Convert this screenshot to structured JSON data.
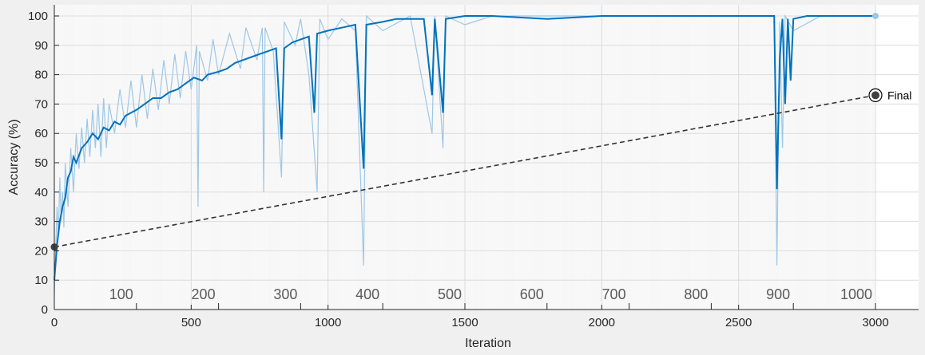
{
  "chart_data": {
    "type": "line",
    "xlabel": "Iteration",
    "ylabel": "Accuracy (%)",
    "xlim": [
      0,
      3000
    ],
    "ylim": [
      0,
      100
    ],
    "xticks": [
      0,
      500,
      1000,
      1500,
      2000,
      2500,
      3000
    ],
    "yticks": [
      0,
      10,
      20,
      30,
      40,
      50,
      60,
      70,
      80,
      90,
      100
    ],
    "epoch_ticks": [
      {
        "iteration": 300,
        "label": "100"
      },
      {
        "iteration": 600,
        "label": "200"
      },
      {
        "iteration": 900,
        "label": "300"
      },
      {
        "iteration": 1200,
        "label": "400"
      },
      {
        "iteration": 1500,
        "label": "500"
      },
      {
        "iteration": 1800,
        "label": "600"
      },
      {
        "iteration": 2100,
        "label": "700"
      },
      {
        "iteration": 2400,
        "label": "800"
      },
      {
        "iteration": 2700,
        "label": "900"
      },
      {
        "iteration": 3000,
        "label": "1000"
      }
    ],
    "grid": true,
    "series": [
      {
        "color": "#0072bd",
        "style": "smoothed",
        "points": [
          [
            0,
            10
          ],
          [
            10,
            22
          ],
          [
            20,
            30
          ],
          [
            30,
            35
          ],
          [
            40,
            38
          ],
          [
            50,
            45
          ],
          [
            60,
            47
          ],
          [
            70,
            52
          ],
          [
            80,
            50
          ],
          [
            100,
            55
          ],
          [
            120,
            57
          ],
          [
            140,
            60
          ],
          [
            160,
            58
          ],
          [
            180,
            62
          ],
          [
            200,
            61
          ],
          [
            220,
            64
          ],
          [
            240,
            63
          ],
          [
            260,
            66
          ],
          [
            280,
            67
          ],
          [
            300,
            68
          ],
          [
            330,
            70
          ],
          [
            360,
            72
          ],
          [
            390,
            72
          ],
          [
            420,
            74
          ],
          [
            450,
            75
          ],
          [
            480,
            77
          ],
          [
            510,
            79
          ],
          [
            540,
            78
          ],
          [
            560,
            80
          ],
          [
            600,
            81
          ],
          [
            630,
            82
          ],
          [
            660,
            84
          ],
          [
            690,
            85
          ],
          [
            720,
            86
          ],
          [
            750,
            87
          ],
          [
            780,
            88
          ],
          [
            810,
            89
          ],
          [
            830,
            58
          ],
          [
            840,
            89
          ],
          [
            870,
            91
          ],
          [
            900,
            92
          ],
          [
            930,
            93
          ],
          [
            950,
            67
          ],
          [
            960,
            94
          ],
          [
            1000,
            95
          ],
          [
            1050,
            96
          ],
          [
            1100,
            97
          ],
          [
            1130,
            48
          ],
          [
            1140,
            97
          ],
          [
            1200,
            98
          ],
          [
            1250,
            99
          ],
          [
            1300,
            99
          ],
          [
            1350,
            99
          ],
          [
            1380,
            73
          ],
          [
            1390,
            99
          ],
          [
            1420,
            67
          ],
          [
            1430,
            99
          ],
          [
            1500,
            100
          ],
          [
            1600,
            100
          ],
          [
            1800,
            99
          ],
          [
            2000,
            100
          ],
          [
            2200,
            100
          ],
          [
            2500,
            100
          ],
          [
            2630,
            100
          ],
          [
            2640,
            41
          ],
          [
            2650,
            85
          ],
          [
            2660,
            99
          ],
          [
            2670,
            70
          ],
          [
            2680,
            99
          ],
          [
            2690,
            78
          ],
          [
            2700,
            99
          ],
          [
            2750,
            100
          ],
          [
            2800,
            100
          ],
          [
            2900,
            100
          ],
          [
            3000,
            100
          ]
        ]
      },
      {
        "color": "#9ec7e6",
        "style": "raw",
        "points": [
          [
            0,
            5
          ],
          [
            5,
            20
          ],
          [
            10,
            35
          ],
          [
            15,
            25
          ],
          [
            20,
            45
          ],
          [
            25,
            30
          ],
          [
            30,
            40
          ],
          [
            35,
            28
          ],
          [
            40,
            50
          ],
          [
            50,
            35
          ],
          [
            60,
            55
          ],
          [
            70,
            40
          ],
          [
            80,
            60
          ],
          [
            90,
            48
          ],
          [
            100,
            62
          ],
          [
            110,
            50
          ],
          [
            120,
            65
          ],
          [
            130,
            52
          ],
          [
            140,
            68
          ],
          [
            150,
            55
          ],
          [
            160,
            70
          ],
          [
            170,
            52
          ],
          [
            180,
            72
          ],
          [
            190,
            55
          ],
          [
            200,
            70
          ],
          [
            220,
            60
          ],
          [
            240,
            75
          ],
          [
            260,
            62
          ],
          [
            280,
            78
          ],
          [
            300,
            62
          ],
          [
            320,
            80
          ],
          [
            340,
            65
          ],
          [
            360,
            82
          ],
          [
            380,
            68
          ],
          [
            400,
            85
          ],
          [
            420,
            70
          ],
          [
            440,
            87
          ],
          [
            460,
            72
          ],
          [
            480,
            88
          ],
          [
            500,
            75
          ],
          [
            520,
            90
          ],
          [
            525,
            35
          ],
          [
            530,
            88
          ],
          [
            560,
            78
          ],
          [
            580,
            92
          ],
          [
            600,
            80
          ],
          [
            640,
            94
          ],
          [
            680,
            82
          ],
          [
            700,
            96
          ],
          [
            740,
            85
          ],
          [
            760,
            96
          ],
          [
            765,
            40
          ],
          [
            770,
            96
          ],
          [
            800,
            88
          ],
          [
            830,
            45
          ],
          [
            840,
            98
          ],
          [
            880,
            90
          ],
          [
            900,
            99
          ],
          [
            930,
            80
          ],
          [
            960,
            40
          ],
          [
            970,
            99
          ],
          [
            1000,
            92
          ],
          [
            1050,
            99
          ],
          [
            1100,
            95
          ],
          [
            1130,
            15
          ],
          [
            1140,
            100
          ],
          [
            1200,
            95
          ],
          [
            1300,
            100
          ],
          [
            1380,
            60
          ],
          [
            1390,
            100
          ],
          [
            1420,
            55
          ],
          [
            1430,
            100
          ],
          [
            1500,
            97
          ],
          [
            1600,
            100
          ],
          [
            2000,
            100
          ],
          [
            2630,
            100
          ],
          [
            2640,
            15
          ],
          [
            2650,
            98
          ],
          [
            2660,
            55
          ],
          [
            2670,
            100
          ],
          [
            2700,
            95
          ],
          [
            2800,
            100
          ],
          [
            3000,
            100
          ]
        ]
      },
      {
        "color": "#333333",
        "style": "dashed",
        "points": [
          [
            0,
            21.3
          ],
          [
            3000,
            73
          ]
        ]
      }
    ],
    "annotations": [
      {
        "x": 3000,
        "y": 73,
        "text": "Final"
      }
    ]
  }
}
